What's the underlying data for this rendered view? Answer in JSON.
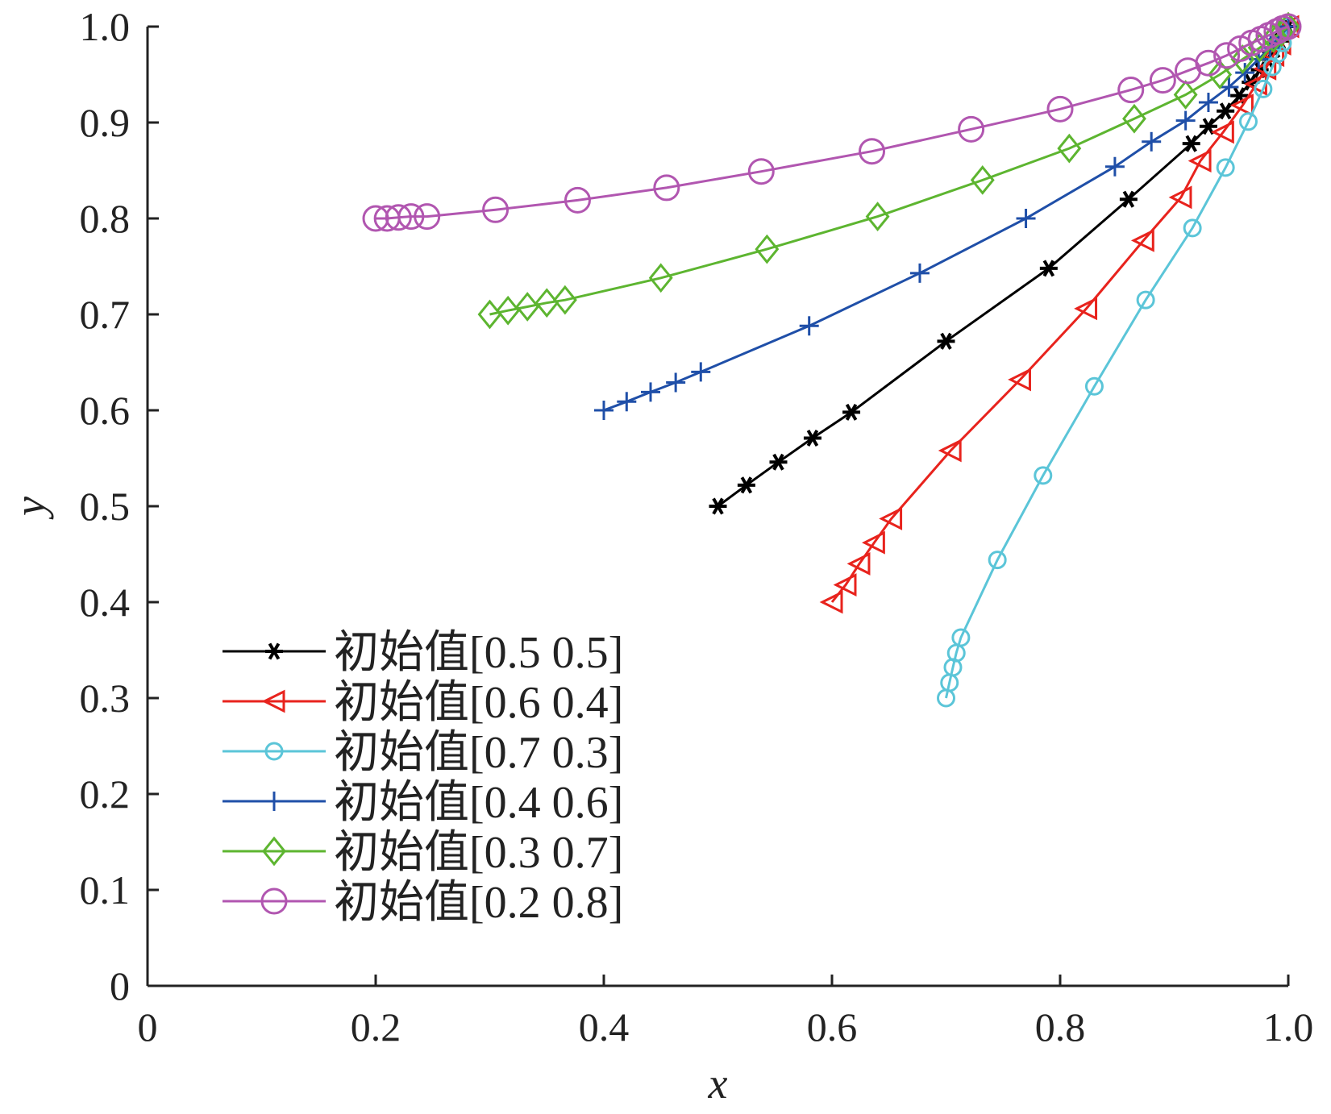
{
  "chart_data": {
    "type": "line",
    "title": "",
    "xlabel": "x",
    "ylabel": "y",
    "xlim": [
      0,
      1.0
    ],
    "ylim": [
      0,
      1.0
    ],
    "xticks": [
      "0",
      "0.2",
      "0.4",
      "0.6",
      "0.8",
      "1.0"
    ],
    "yticks": [
      "0",
      "0.1",
      "0.2",
      "0.3",
      "0.4",
      "0.5",
      "0.6",
      "0.7",
      "0.8",
      "0.9",
      "1.0"
    ],
    "grid": false,
    "legend_position": "bottom-left",
    "series": [
      {
        "name": "初始值[0.5 0.5]",
        "color": "#000000",
        "marker": "asterisk",
        "points": [
          [
            0.5,
            0.5
          ],
          [
            0.525,
            0.522
          ],
          [
            0.553,
            0.546
          ],
          [
            0.583,
            0.571
          ],
          [
            0.617,
            0.598
          ],
          [
            0.7,
            0.672
          ],
          [
            0.79,
            0.748
          ],
          [
            0.86,
            0.82
          ],
          [
            0.915,
            0.878
          ],
          [
            0.93,
            0.896
          ],
          [
            0.945,
            0.912
          ],
          [
            0.957,
            0.928
          ],
          [
            0.967,
            0.942
          ],
          [
            0.975,
            0.955
          ],
          [
            0.982,
            0.966
          ],
          [
            0.988,
            0.976
          ],
          [
            0.993,
            0.985
          ],
          [
            1.0,
            1.0
          ]
        ]
      },
      {
        "name": "初始值[0.6 0.4]",
        "color": "#e8231d",
        "marker": "triangle-left",
        "points": [
          [
            0.6,
            0.4
          ],
          [
            0.612,
            0.418
          ],
          [
            0.624,
            0.44
          ],
          [
            0.637,
            0.462
          ],
          [
            0.652,
            0.487
          ],
          [
            0.704,
            0.558
          ],
          [
            0.765,
            0.632
          ],
          [
            0.823,
            0.706
          ],
          [
            0.873,
            0.777
          ],
          [
            0.906,
            0.822
          ],
          [
            0.923,
            0.86
          ],
          [
            0.943,
            0.89
          ],
          [
            0.96,
            0.918
          ],
          [
            0.972,
            0.94
          ],
          [
            0.98,
            0.956
          ],
          [
            0.987,
            0.97
          ],
          [
            0.993,
            0.982
          ],
          [
            1.0,
            1.0
          ]
        ]
      },
      {
        "name": "初始值[0.7 0.3]",
        "color": "#5bc5d8",
        "marker": "circle",
        "points": [
          [
            0.7,
            0.3
          ],
          [
            0.703,
            0.316
          ],
          [
            0.706,
            0.332
          ],
          [
            0.709,
            0.347
          ],
          [
            0.713,
            0.363
          ],
          [
            0.745,
            0.444
          ],
          [
            0.785,
            0.532
          ],
          [
            0.83,
            0.625
          ],
          [
            0.875,
            0.715
          ],
          [
            0.916,
            0.79
          ],
          [
            0.945,
            0.853
          ],
          [
            0.965,
            0.901
          ],
          [
            0.978,
            0.935
          ],
          [
            0.986,
            0.958
          ],
          [
            0.991,
            0.972
          ],
          [
            0.995,
            0.983
          ],
          [
            1.0,
            1.0
          ]
        ]
      },
      {
        "name": "初始值[0.4 0.6]",
        "color": "#1f4fa8",
        "marker": "plus",
        "points": [
          [
            0.4,
            0.6
          ],
          [
            0.42,
            0.609
          ],
          [
            0.441,
            0.619
          ],
          [
            0.463,
            0.629
          ],
          [
            0.485,
            0.64
          ],
          [
            0.58,
            0.688
          ],
          [
            0.677,
            0.743
          ],
          [
            0.77,
            0.8
          ],
          [
            0.848,
            0.854
          ],
          [
            0.88,
            0.88
          ],
          [
            0.91,
            0.902
          ],
          [
            0.93,
            0.921
          ],
          [
            0.948,
            0.937
          ],
          [
            0.962,
            0.952
          ],
          [
            0.974,
            0.966
          ],
          [
            0.984,
            0.978
          ],
          [
            0.992,
            0.989
          ],
          [
            1.0,
            1.0
          ]
        ]
      },
      {
        "name": "初始值[0.3 0.7]",
        "color": "#5db530",
        "marker": "diamond",
        "points": [
          [
            0.3,
            0.7
          ],
          [
            0.316,
            0.704
          ],
          [
            0.333,
            0.708
          ],
          [
            0.35,
            0.712
          ],
          [
            0.366,
            0.715
          ],
          [
            0.45,
            0.738
          ],
          [
            0.543,
            0.768
          ],
          [
            0.64,
            0.802
          ],
          [
            0.732,
            0.84
          ],
          [
            0.808,
            0.873
          ],
          [
            0.865,
            0.904
          ],
          [
            0.91,
            0.929
          ],
          [
            0.94,
            0.95
          ],
          [
            0.96,
            0.966
          ],
          [
            0.975,
            0.978
          ],
          [
            0.987,
            0.988
          ],
          [
            0.994,
            0.994
          ],
          [
            1.0,
            1.0
          ]
        ]
      },
      {
        "name": "初始值[0.2 0.8]",
        "color": "#b156b0",
        "marker": "circle-large",
        "points": [
          [
            0.2,
            0.8
          ],
          [
            0.21,
            0.8
          ],
          [
            0.22,
            0.801
          ],
          [
            0.231,
            0.802
          ],
          [
            0.245,
            0.802
          ],
          [
            0.305,
            0.809
          ],
          [
            0.377,
            0.819
          ],
          [
            0.455,
            0.832
          ],
          [
            0.538,
            0.849
          ],
          [
            0.635,
            0.87
          ],
          [
            0.722,
            0.893
          ],
          [
            0.8,
            0.914
          ],
          [
            0.862,
            0.934
          ],
          [
            0.89,
            0.944
          ],
          [
            0.912,
            0.954
          ],
          [
            0.93,
            0.962
          ],
          [
            0.946,
            0.97
          ],
          [
            0.958,
            0.977
          ],
          [
            0.968,
            0.983
          ],
          [
            0.976,
            0.987
          ],
          [
            0.983,
            0.991
          ],
          [
            0.99,
            0.995
          ],
          [
            0.995,
            0.998
          ],
          [
            1.0,
            1.0
          ]
        ]
      }
    ]
  }
}
